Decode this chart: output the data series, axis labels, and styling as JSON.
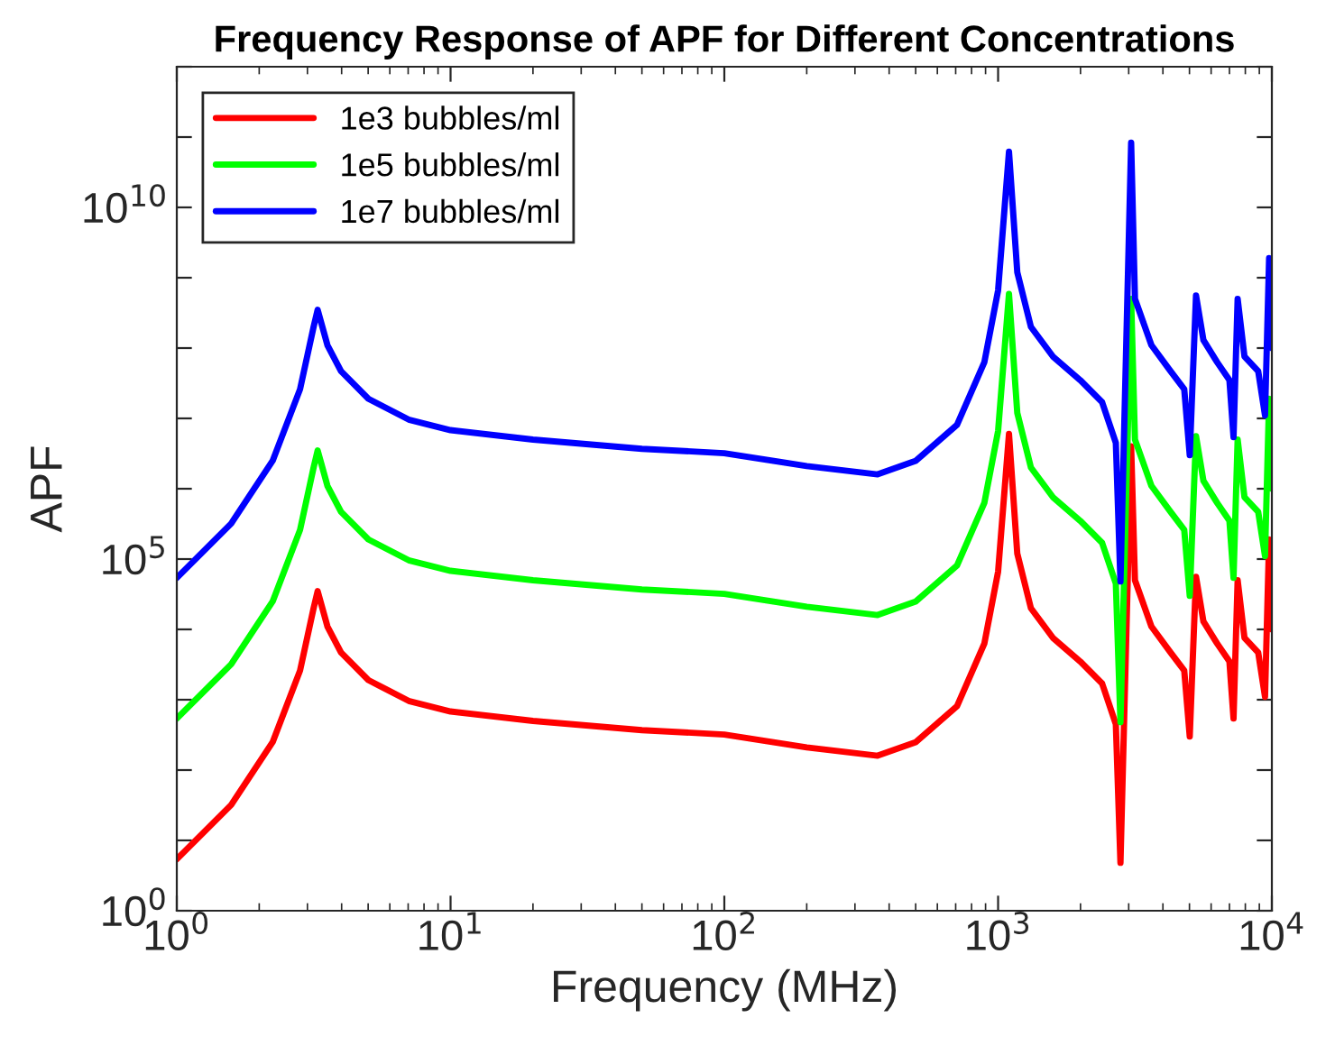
{
  "chart_data": {
    "type": "line",
    "title": "Frequency Response of APF for Different Concentrations",
    "xlabel": "Frequency (MHz)",
    "ylabel": "APF",
    "log": "xy",
    "xlim": [
      1,
      10000
    ],
    "ylim": [
      1,
      1000000000000.0
    ],
    "xticks": [
      {
        "value": 1,
        "label": "10$^{0}$"
      },
      {
        "value": 10,
        "label": "10$^{1}$"
      },
      {
        "value": 100,
        "label": "10$^{2}$"
      },
      {
        "value": 1000,
        "label": "10$^{3}$"
      },
      {
        "value": 10000,
        "label": "10$^{4}$"
      }
    ],
    "yticks": [
      {
        "value": 1,
        "label": "10$^{0}$"
      },
      {
        "value": 10,
        "label": null
      },
      {
        "value": 100,
        "label": null
      },
      {
        "value": 1000,
        "label": null
      },
      {
        "value": 10000,
        "label": null
      },
      {
        "value": 100000,
        "label": "10$^{5}$"
      },
      {
        "value": 1000000.0,
        "label": null
      },
      {
        "value": 10000000.0,
        "label": null
      },
      {
        "value": 100000000.0,
        "label": null
      },
      {
        "value": 1000000000.0,
        "label": null
      },
      {
        "value": 10000000000.0,
        "label": "10$^{10}$"
      },
      {
        "value": 100000000000.0,
        "label": null
      },
      {
        "value": 1000000000000.0,
        "label": null
      }
    ],
    "grid": false,
    "legend": "top left",
    "line_style": "solid",
    "marker": "none",
    "x": [
      1,
      1.58,
      2.24,
      2.82,
      3.16,
      3.27,
      3.55,
      3.98,
      5.01,
      7.08,
      10,
      20,
      50,
      100,
      200,
      363,
      501,
      708,
      891,
      1000,
      1096,
      1175,
      1318,
      1585,
      1995,
      2399,
      2692,
      2799,
      3062,
      3162,
      3631,
      4266,
      4786,
      5012,
      5284,
      5623,
      6310,
      6998,
      7244,
      7499,
      7943,
      8913,
      9441,
      9772,
      10000
    ],
    "series": [
      {
        "name": "1e3 bubbles/ml",
        "color": "#ff0000",
        "values": [
          5.4,
          32,
          250,
          2600,
          20000.0,
          35000.0,
          11000.0,
          4700,
          1900,
          950,
          680,
          500,
          370,
          320,
          210,
          160,
          250,
          810,
          6300,
          66000.0,
          6000000.0,
          120000.0,
          20000.0,
          7600,
          3500,
          1700,
          450,
          4.8,
          4000000.0,
          50000.0,
          11000.0,
          4700,
          2600,
          300,
          56000.0,
          13000.0,
          6300,
          3500,
          540,
          50000.0,
          7600,
          4700,
          1100,
          190000.0,
          10000.0
        ]
      },
      {
        "name": "1e5 bubbles/ml",
        "color": "#00ff00",
        "values": [
          540,
          3200,
          25000.0,
          260000.0,
          2000000.0,
          3500000.0,
          1100000.0,
          470000.0,
          190000.0,
          95000.0,
          68000.0,
          50000.0,
          37000.0,
          32000.0,
          21000.0,
          16000.0,
          25000.0,
          81000.0,
          630000.0,
          6600000.0,
          590000000.0,
          12000000.0,
          2000000.0,
          760000.0,
          350000.0,
          170000.0,
          45000.0,
          480,
          500000000.0,
          5000000.0,
          1100000.0,
          470000.0,
          260000.0,
          30000.0,
          5600000.0,
          1300000.0,
          630000.0,
          350000.0,
          54000.0,
          5000000.0,
          760000.0,
          470000.0,
          110000.0,
          19000000.0,
          1000000.0
        ]
      },
      {
        "name": "1e7 bubbles/ml",
        "color": "#0000ff",
        "values": [
          54000.0,
          320000.0,
          2500000.0,
          26000000.0,
          200000000.0,
          350000000.0,
          110000000.0,
          47000000.0,
          19000000.0,
          9500000.0,
          6800000.0,
          5000000.0,
          3700000.0,
          3200000.0,
          2100000.0,
          1600000.0,
          2500000.0,
          8100000.0,
          63000000.0,
          660000000.0,
          62000000000.0,
          1200000000.0,
          200000000.0,
          76000000.0,
          35000000.0,
          17000000.0,
          4500000.0,
          48000.0,
          83000000000.0,
          500000000.0,
          110000000.0,
          47000000.0,
          26000000.0,
          3000000.0,
          560000000.0,
          130000000.0,
          63000000.0,
          35000000.0,
          5400000.0,
          500000000.0,
          76000000.0,
          47000000.0,
          11000000.0,
          1900000000.0,
          100000000.0
        ]
      }
    ]
  }
}
